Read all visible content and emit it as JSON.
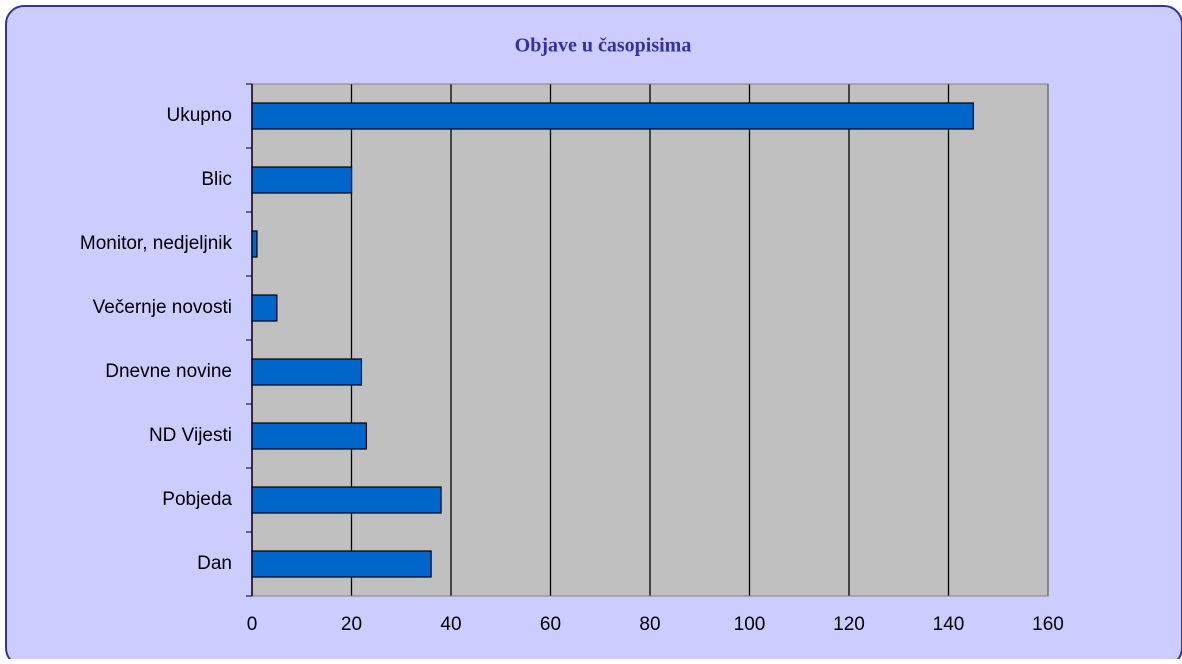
{
  "chart_data": {
    "type": "bar",
    "orientation": "horizontal",
    "title": "Objave u časopisima",
    "categories": [
      "Ukupno",
      "Blic",
      "Monitor, nedjeljnik",
      "Večernje novosti",
      "Dnevne novine",
      "ND Vijesti",
      "Pobjeda",
      "Dan"
    ],
    "values": [
      145,
      20,
      1,
      5,
      22,
      23,
      38,
      36
    ],
    "color": "#0066cc",
    "xlim": [
      0,
      160
    ],
    "xticks": [
      0,
      20,
      40,
      60,
      80,
      100,
      120,
      140,
      160
    ],
    "grid": true
  }
}
